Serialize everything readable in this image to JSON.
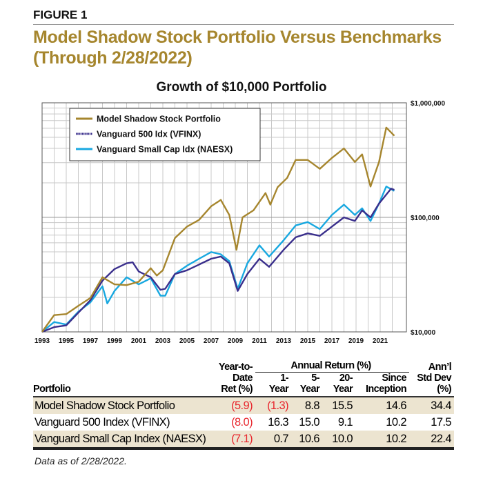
{
  "figure_label": "FIGURE 1",
  "title_line1": "Model Shadow Stock Portfolio Versus Benchmarks",
  "title_line2": "(Through 2/28/2022)",
  "colors": {
    "title": "#a6862e",
    "model": "#a6862e",
    "vfinx": "#3a2f8c",
    "naesx": "#18a8e0",
    "band": "#ece4d0",
    "negative": "#e8262d"
  },
  "chart_data": {
    "type": "line",
    "title": "Growth of $10,000 Portfolio",
    "y_scale": "log",
    "ylim": [
      10000,
      1000000
    ],
    "y_ticks": [
      "$10,000",
      "$100,000",
      "$1,000,000"
    ],
    "x_ticks": [
      "1993",
      "1995",
      "1997",
      "1999",
      "2001",
      "2003",
      "2005",
      "2007",
      "2009",
      "2011",
      "2013",
      "2015",
      "2017",
      "2019",
      "2021"
    ],
    "xlim": [
      1993,
      2023.3
    ],
    "grid": true,
    "legend_position": "top-left",
    "series": [
      {
        "name": "Model Shadow Stock Portfolio",
        "key": "model",
        "x": [
          1993,
          1994,
          1995,
          1996,
          1997,
          1998,
          1999,
          2000,
          2001,
          2002,
          2002.5,
          2003,
          2004,
          2005,
          2006,
          2007,
          2007.8,
          2008.5,
          2009.1,
          2009.6,
          2010.5,
          2011.5,
          2011.9,
          2012.5,
          2013.3,
          2014,
          2015,
          2016,
          2017,
          2018,
          2018.9,
          2019.5,
          2020.2,
          2020.9,
          2021.5,
          2022.17
        ],
        "y": [
          10000,
          14000,
          14300,
          16900,
          19800,
          30000,
          26000,
          25600,
          27400,
          36000,
          31000,
          34500,
          66000,
          83000,
          95000,
          125000,
          142000,
          105000,
          52000,
          100000,
          115000,
          163000,
          129000,
          183000,
          221000,
          317000,
          317000,
          265000,
          330000,
          400000,
          304000,
          355000,
          186000,
          304000,
          608000,
          516000
        ]
      },
      {
        "name": "Vanguard 500 Idx (VFINX)",
        "key": "vfinx",
        "x": [
          1993,
          1994,
          1995,
          1996,
          1997,
          1998,
          1999,
          2000,
          2000.5,
          2001,
          2002,
          2002.8,
          2003.2,
          2004,
          2005,
          2006,
          2007,
          2007.8,
          2008.5,
          2009.2,
          2010,
          2011,
          2011.8,
          2013,
          2014,
          2015,
          2016,
          2017,
          2018,
          2018.9,
          2019.5,
          2020.2,
          2020.9,
          2021.9,
          2022.17
        ],
        "y": [
          10000,
          11000,
          11400,
          14700,
          18900,
          28000,
          35400,
          39700,
          40500,
          33700,
          30000,
          23300,
          23800,
          32000,
          34500,
          38700,
          43500,
          45500,
          39700,
          22800,
          32000,
          43500,
          37000,
          52000,
          67000,
          72500,
          69000,
          83000,
          100000,
          93000,
          115000,
          100000,
          132000,
          178000,
          174000
        ]
      },
      {
        "name": "Vanguard Small Cap Idx (NAESX)",
        "key": "naesx",
        "x": [
          1993,
          1994,
          1995,
          1996,
          1997,
          1998,
          1998.4,
          1999,
          2000,
          2001,
          2002,
          2002.8,
          2003.2,
          2004,
          2005,
          2006,
          2007,
          2007.8,
          2008.5,
          2009.2,
          2010,
          2011,
          2011.8,
          2013,
          2014,
          2015,
          2016,
          2017,
          2018,
          2018.9,
          2019.5,
          2020.2,
          2020.9,
          2021.5,
          2022.17
        ],
        "y": [
          10000,
          12200,
          11600,
          15000,
          18100,
          25000,
          17700,
          22800,
          30000,
          26000,
          29400,
          20700,
          20700,
          32000,
          37800,
          43500,
          49800,
          47600,
          41500,
          23800,
          39700,
          57000,
          45500,
          63000,
          85000,
          91000,
          79000,
          105000,
          129000,
          105000,
          120000,
          93000,
          132000,
          186000,
          170000
        ]
      }
    ]
  },
  "table": {
    "headers": {
      "portfolio": "Portfolio",
      "ytd": [
        "Year-to-",
        "Date",
        "Ret (%)"
      ],
      "annual_group": "Annual Return (%)",
      "y1": [
        "1-",
        "Year"
      ],
      "y5": [
        "5-",
        "Year"
      ],
      "y20": [
        "20-",
        "Year"
      ],
      "since": [
        "Since",
        "Inception"
      ],
      "std": [
        "Ann’l",
        "Std Dev",
        "(%)"
      ]
    },
    "rows": [
      {
        "name": "Model Shadow Stock Portfolio",
        "ytd": "(5.9)",
        "y1": "(1.3)",
        "y5": "8.8",
        "y20": "15.5",
        "since": "14.6",
        "std": "34.4"
      },
      {
        "name": "Vanguard 500 Index (VFINX)",
        "ytd": "(8.0)",
        "y1": "16.3",
        "y5": "15.0",
        "y20": "9.1",
        "since": "10.2",
        "std": "17.5"
      },
      {
        "name": "Vanguard Small Cap Index (NAESX)",
        "ytd": "(7.1)",
        "y1": "0.7",
        "y5": "10.6",
        "y20": "10.0",
        "since": "10.2",
        "std": "22.4"
      }
    ]
  },
  "footnote": "Data as of 2/28/2022."
}
